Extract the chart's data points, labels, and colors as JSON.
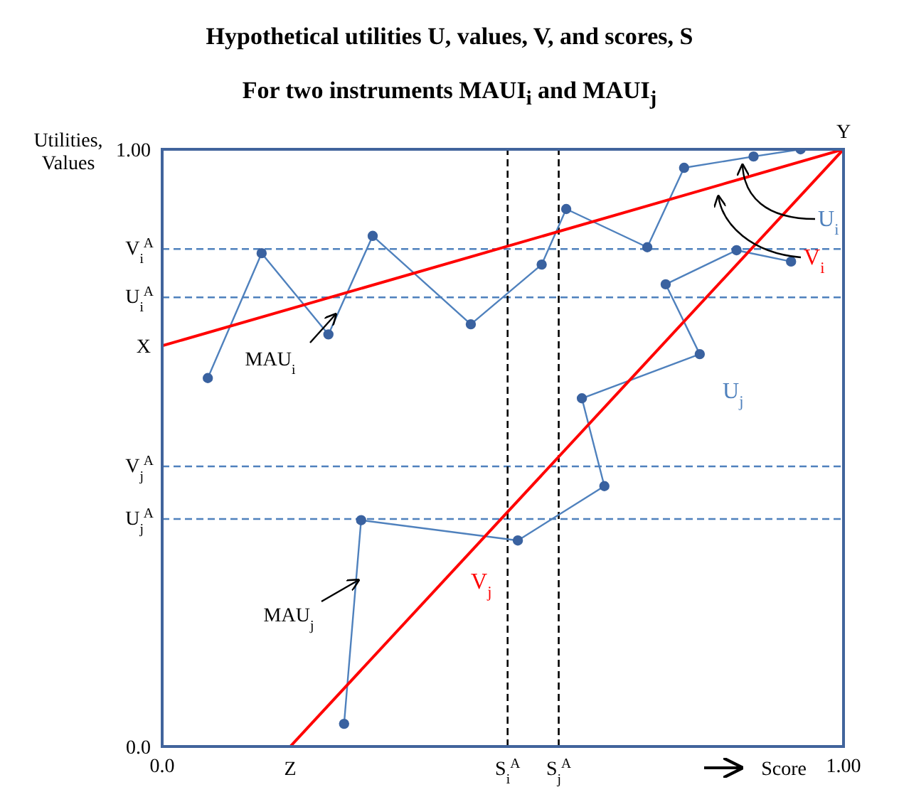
{
  "chart_data": {
    "type": "line",
    "title": "Hypothetical utilities U, values, V, and scores, S",
    "subtitle": "For two instruments MAUI$_{i}$ and MAUI$_{j}$",
    "xlabel": "Score",
    "ylabel": "Utilities, Values",
    "xlim": [
      0,
      1
    ],
    "ylim": [
      0,
      1
    ],
    "xticks": [
      {
        "value": 0,
        "label": "0.0"
      },
      {
        "value": 1,
        "label": "1.00"
      }
    ],
    "yticks": [
      {
        "value": 0,
        "label": "0.0"
      },
      {
        "value": 1,
        "label": "1.00"
      }
    ],
    "series": [
      {
        "name": "U$_{i}$",
        "color": "#4f81bd",
        "marker": "circle",
        "x": [
          0.067,
          0.146,
          0.244,
          0.309,
          0.453,
          0.557,
          0.593,
          0.712,
          0.766,
          0.868,
          0.937
        ],
        "values": [
          0.617,
          0.826,
          0.69,
          0.855,
          0.707,
          0.807,
          0.9,
          0.836,
          0.969,
          0.988,
          1.0
        ]
      },
      {
        "name": "V$_{i}$",
        "color": "#ff0000",
        "marker": "none",
        "x": [
          0,
          1
        ],
        "values": [
          0.671,
          1.0
        ]
      },
      {
        "name": "U$_{j}$",
        "color": "#4f81bd",
        "marker": "circle",
        "x": [
          0.267,
          0.292,
          0.522,
          0.649,
          0.616,
          0.789,
          0.739,
          0.843,
          0.923
        ],
        "values": [
          0.038,
          0.379,
          0.345,
          0.436,
          0.583,
          0.657,
          0.774,
          0.831,
          0.812
        ]
      },
      {
        "name": "V$_{j}$",
        "color": "#ff0000",
        "marker": "none",
        "x": [
          0.188,
          1
        ],
        "values": [
          0,
          1.0
        ]
      }
    ],
    "ref_lines": [
      {
        "axis": "y",
        "value": 0.833,
        "label": "V$_{i}$$^{A}$",
        "color": "#4f81bd",
        "line_style": "dashed"
      },
      {
        "axis": "y",
        "value": 0.752,
        "label": "U$_{i}$$^{A}$",
        "color": "#4f81bd",
        "line_style": "dashed"
      },
      {
        "axis": "y",
        "value": 0.469,
        "label": "V$_{j}$$^{A}$",
        "color": "#4f81bd",
        "line_style": "dashed"
      },
      {
        "axis": "y",
        "value": 0.381,
        "label": "U$_{j}$$^{A}$",
        "color": "#4f81bd",
        "line_style": "dashed"
      },
      {
        "axis": "x",
        "value": 0.507,
        "label": "S$_{i}$$^{A}$",
        "color": "#000000",
        "line_style": "dashed"
      },
      {
        "axis": "x",
        "value": 0.582,
        "label": "S$_{j}$$^{A}$",
        "color": "#000000",
        "line_style": "dashed"
      }
    ],
    "annotations": [
      {
        "text": "X",
        "x": 0,
        "y": 0.671
      },
      {
        "text": "Y",
        "x": 1,
        "y": 1
      },
      {
        "text": "Z",
        "x": 0.188,
        "y": 0
      },
      "MAU$_{i}$",
      "MAU$_{j}$"
    ]
  }
}
